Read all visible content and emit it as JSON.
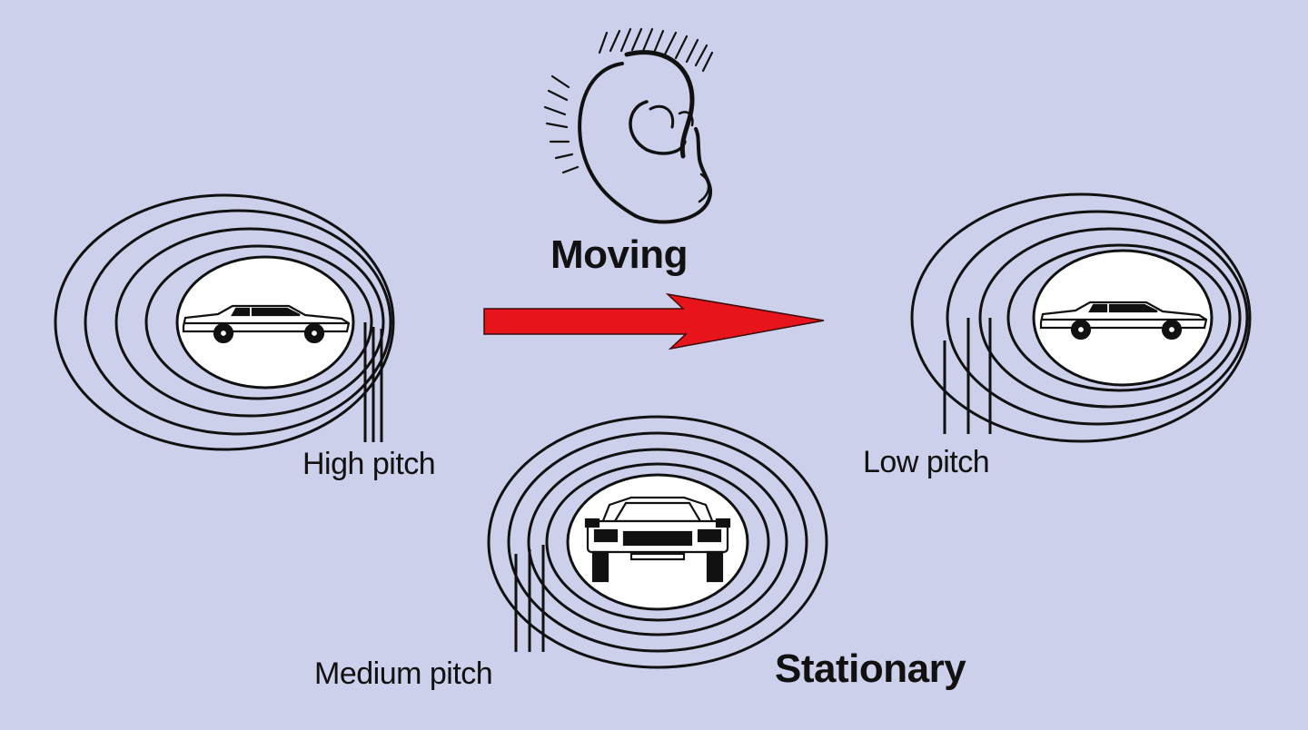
{
  "labels": {
    "moving": "Moving",
    "stationary": "Stationary",
    "high_pitch": "High pitch",
    "low_pitch": "Low pitch",
    "medium_pitch": "Medium pitch"
  },
  "colors": {
    "background": "#cdd0eb",
    "arrow": "#e8141c",
    "ink": "#111111",
    "disc": "#ffffff"
  },
  "icons": {
    "listener": "ear-icon",
    "vehicle": "car-icon",
    "direction": "arrow-right-icon"
  }
}
